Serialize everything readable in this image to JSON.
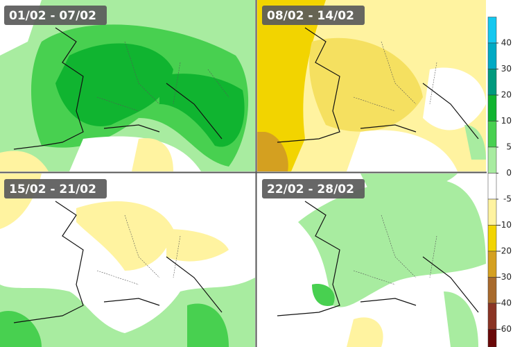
{
  "panels": [
    {
      "label": "01/02 - 07/02"
    },
    {
      "label": "08/02 - 14/02"
    },
    {
      "label": "15/02 - 21/02"
    },
    {
      "label": "22/02 - 28/02"
    }
  ],
  "colorbar": {
    "ticks": [
      40,
      30,
      20,
      10,
      5,
      0,
      -5,
      -10,
      -20,
      -30,
      -40,
      -60
    ],
    "colors": [
      "#14c8f0",
      "#00aac4",
      "#009a7e",
      "#10b430",
      "#48d050",
      "#a8eca0",
      "#ffffff",
      "#fff3a0",
      "#f2d400",
      "#d4a020",
      "#a86a2c",
      "#8a3424",
      "#6a0808"
    ]
  }
}
